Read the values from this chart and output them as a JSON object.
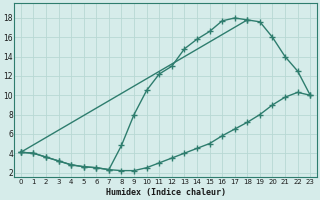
{
  "xlabel": "Humidex (Indice chaleur)",
  "bg_color": "#d6ecea",
  "grid_color": "#b8d8d4",
  "line_color": "#2e7d6e",
  "xlim": [
    -0.5,
    23.5
  ],
  "ylim": [
    1.5,
    19.5
  ],
  "xticks": [
    0,
    1,
    2,
    3,
    4,
    5,
    6,
    7,
    8,
    9,
    10,
    11,
    12,
    13,
    14,
    15,
    16,
    17,
    18,
    19,
    20,
    21,
    22,
    23
  ],
  "yticks": [
    2,
    4,
    6,
    8,
    10,
    12,
    14,
    16,
    18
  ],
  "curve1_x": [
    0,
    1,
    2,
    3,
    4,
    5,
    6,
    7,
    8,
    9,
    10,
    11,
    12,
    13,
    14,
    15,
    16,
    17,
    18
  ],
  "curve1_y": [
    4.1,
    4.0,
    3.6,
    3.2,
    2.8,
    2.6,
    2.5,
    2.3,
    4.8,
    8.0,
    10.5,
    12.2,
    13.0,
    14.8,
    15.8,
    16.6,
    17.7,
    18.0,
    17.8
  ],
  "curve2_x": [
    0,
    1,
    2,
    3,
    4,
    5,
    6,
    7,
    8,
    9,
    10,
    11,
    12,
    13,
    14,
    15,
    16,
    17,
    18,
    19,
    20,
    21,
    22,
    23
  ],
  "curve2_y": [
    4.1,
    4.0,
    3.6,
    3.2,
    2.8,
    2.6,
    2.5,
    2.3,
    2.2,
    2.2,
    2.5,
    3.0,
    3.5,
    4.0,
    4.5,
    5.0,
    5.8,
    6.5,
    7.2,
    8.0,
    9.0,
    9.8,
    10.3,
    10.0
  ],
  "curve3_x": [
    0,
    18,
    19,
    20,
    21,
    22,
    23
  ],
  "curve3_y": [
    4.1,
    17.8,
    17.6,
    16.0,
    14.0,
    12.5,
    10.0
  ]
}
